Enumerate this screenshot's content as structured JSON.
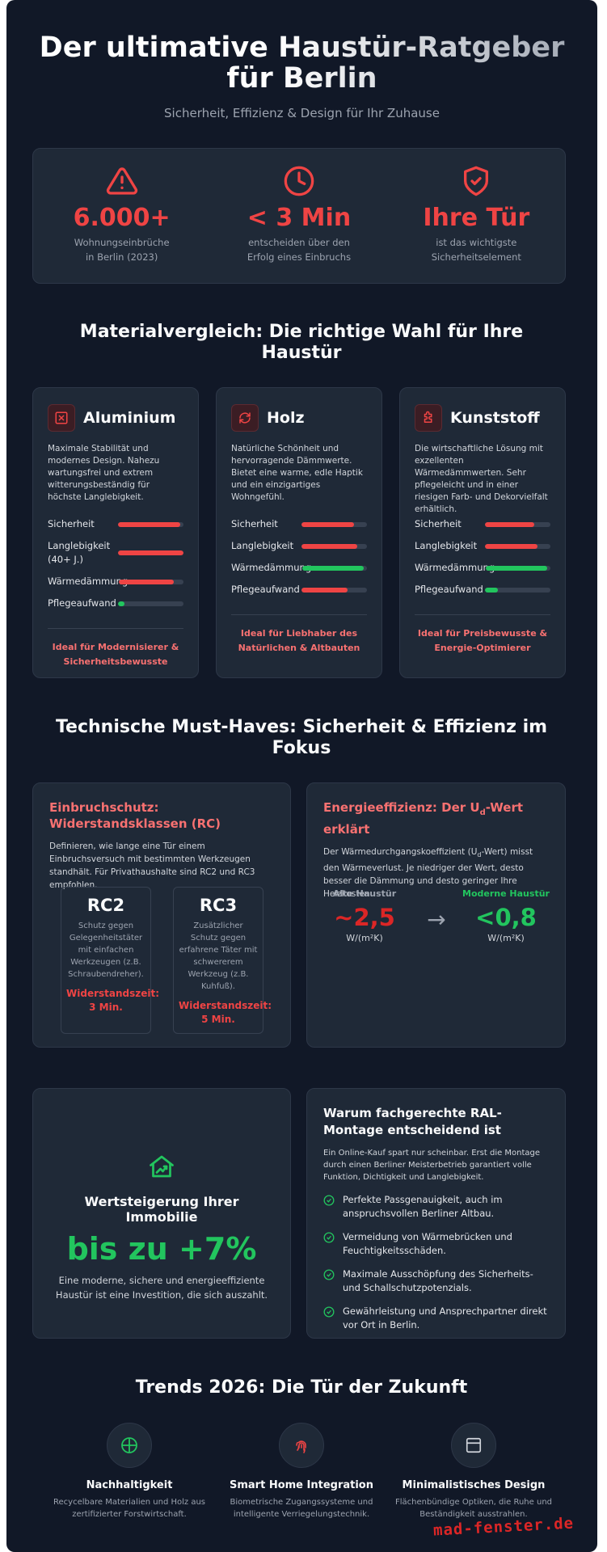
{
  "hero": {
    "title_line1": "Der ultimative Haustür-Ratgeber",
    "title_line2": "für Berlin",
    "subtitle": "Sicherheit, Effizienz & Design für Ihr Zuhause"
  },
  "stats": [
    {
      "icon": "warning-triangle-icon",
      "value": "6.000+",
      "label_line1": "Wohnungseinbrüche",
      "label_line2": "in Berlin (2023)"
    },
    {
      "icon": "clock-icon",
      "value": "< 3 Min",
      "label_line1": "entscheiden über den",
      "label_line2": "Erfolg eines Einbruchs"
    },
    {
      "icon": "shield-check-icon",
      "value": "Ihre Tür",
      "label_line1": "ist das wichtigste",
      "label_line2": "Sicherheitselement"
    }
  ],
  "materials_title": "Materialvergleich: Die richtige Wahl für Ihre Haustür",
  "materials": [
    {
      "name": "Aluminium",
      "description": "Maximale Stabilität und modernes Design. Nahezu wartungsfrei und extrem witterungsbeständig für höchste Langlebigkeit.",
      "bars": [
        {
          "label": "Sicherheit",
          "value": 0.95,
          "color": "#ef4444"
        },
        {
          "label": "Langlebigkeit (40+ J.)",
          "value": 1.0,
          "color": "#ef4444"
        },
        {
          "label": "Wärmedämmung",
          "value": 0.85,
          "color": "#ef4444"
        },
        {
          "label": "Pflegeaufwand",
          "value": 0.1,
          "color": "#22c55e"
        }
      ],
      "ideal_line1": "Ideal für Modernisierer &",
      "ideal_line2": "Sicherheitsbewusste"
    },
    {
      "name": "Holz",
      "description": "Natürliche Schönheit und hervorragende Dämmwerte. Bietet eine warme, edle Haptik und ein einzigartiges Wohngefühl.",
      "bars": [
        {
          "label": "Sicherheit",
          "value": 0.8,
          "color": "#ef4444"
        },
        {
          "label": "Langlebigkeit",
          "value": 0.85,
          "color": "#ef4444"
        },
        {
          "label": "Wärmedämmung",
          "value": 0.95,
          "color": "#22c55e"
        },
        {
          "label": "Pflegeaufwand",
          "value": 0.7,
          "color": "#ef4444"
        }
      ],
      "ideal_line1": "Ideal für Liebhaber des",
      "ideal_line2": "Natürlichen & Altbauten"
    },
    {
      "name": "Kunststoff",
      "description": "Die wirtschaftliche Lösung mit exzellenten Wärmedämmwerten. Sehr pflegeleicht und in einer riesigen Farb- und Dekorvielfalt erhältlich.",
      "bars": [
        {
          "label": "Sicherheit",
          "value": 0.75,
          "color": "#ef4444"
        },
        {
          "label": "Langlebigkeit",
          "value": 0.8,
          "color": "#ef4444"
        },
        {
          "label": "Wärmedämmung",
          "value": 0.95,
          "color": "#22c55e"
        },
        {
          "label": "Pflegeaufwand",
          "value": 0.2,
          "color": "#22c55e"
        }
      ],
      "ideal_line1": "Ideal für Preisbewusste &",
      "ideal_line2": "Energie-Optimierer"
    }
  ],
  "tech_title": "Technische Must-Haves: Sicherheit & Effizienz im Fokus",
  "rc": {
    "title": "Einbruchschutz: Widerstandsklassen (RC)",
    "text": "Definieren, wie lange eine Tür einem Einbruchsversuch mit bestimmten Werkzeugen standhält. Für Privathaushalte sind RC2 und RC3 empfohlen.",
    "classes": [
      {
        "name": "RC2",
        "description": "Schutz gegen Gelegenheitstäter mit einfachen Werkzeugen (z.B. Schraubendreher).",
        "time_label": "Widerstandszeit:",
        "time_value": "3 Min."
      },
      {
        "name": "RC3",
        "description": "Zusätzlicher Schutz gegen erfahrene Täter mit schwererem Werkzeug (z.B. Kuhfuß).",
        "time_label": "Widerstandszeit:",
        "time_value": "5 Min."
      }
    ]
  },
  "energy": {
    "title_main": "Energieeffizienz: Der U",
    "title_sub": "d",
    "title_end": "-Wert erklärt",
    "text_a": "Der Wärmedurchgangskoeffizient (U",
    "text_sub": "d",
    "text_b": "-Wert) misst den Wärmeverlust. Je niedriger der Wert, desto besser die Dämmung und desto geringer Ihre Heizkosten.",
    "old_label": "Alte Haustür",
    "old_value": "~2,5",
    "new_label": "Moderne Haustür",
    "new_value": "<0,8",
    "unit": "W/(m²K)",
    "arrow": "→"
  },
  "value": {
    "icon": "house-growth-icon",
    "title": "Wertsteigerung Ihrer Immobilie",
    "figure": "bis zu +7%",
    "text": "Eine moderne, sichere und energieeffiziente Haustür ist eine Investition, die sich auszahlt."
  },
  "ral": {
    "title": "Warum fachgerechte RAL-Montage entscheidend ist",
    "text": "Ein Online-Kauf spart nur scheinbar. Erst die Montage durch einen Berliner Meisterbetrieb garantiert volle Funktion, Dichtigkeit und Langlebigkeit.",
    "items": [
      "Perfekte Passgenauigkeit, auch im anspruchsvollen Berliner Altbau.",
      "Vermeidung von Wärmebrücken und Feuchtigkeitsschäden.",
      "Maximale Ausschöpfung des Sicherheits- und Schallschutzpotenzials.",
      "Gewährleistung und Ansprechpartner direkt vor Ort in Berlin."
    ]
  },
  "trends_title": "Trends 2026: Die Tür der Zukunft",
  "trends": [
    {
      "icon": "globe-icon",
      "title": "Nachhaltigkeit",
      "text_line1": "Recycelbare Materialien und Holz aus",
      "text_line2": "zertifizierter Forstwirtschaft."
    },
    {
      "icon": "fingerprint-icon",
      "title": "Smart Home Integration",
      "text_line1": "Biometrische Zugangssysteme und",
      "text_line2": "intelligente Verriegelungstechnik."
    },
    {
      "icon": "window-icon",
      "title": "Minimalistisches Design",
      "text_line1": "Flächenbündige Optiken, die Ruhe und",
      "text_line2": "Beständigkeit ausstrahlen."
    }
  ],
  "watermark": "mad-fenster.de",
  "colors": {
    "accent_red": "#ef4444",
    "accent_green": "#22c55e",
    "background": "#111827",
    "card": "#1f2937"
  }
}
